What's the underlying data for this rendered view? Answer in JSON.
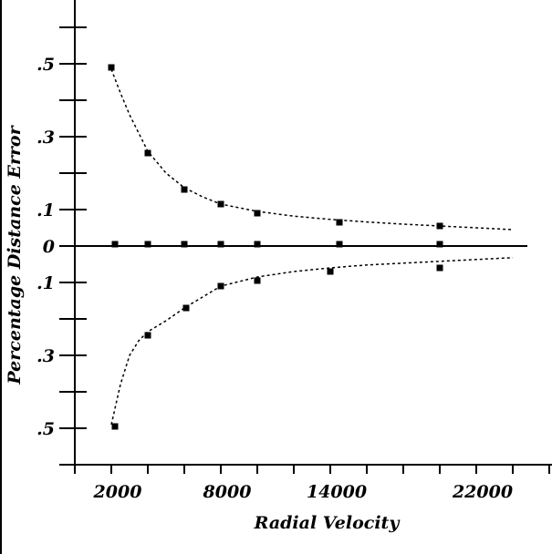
{
  "chart_data": {
    "type": "scatter",
    "xlabel": "Radial Velocity",
    "ylabel": "Percentage Distance Error",
    "xlim": [
      0,
      26000
    ],
    "ylim": [
      -0.6,
      0.6
    ],
    "x_tick_values": [
      2000,
      8000,
      14000,
      22000
    ],
    "x_tick_labels": [
      "2000",
      "8000",
      "14000",
      "22000"
    ],
    "x_minor_ticks": [
      0,
      2000,
      4000,
      6000,
      8000,
      10000,
      12000,
      14000,
      16000,
      18000,
      20000,
      22000,
      24000,
      26000
    ],
    "y_tick_values": [
      0.5,
      0.3,
      0.1,
      0,
      -0.1,
      -0.3,
      -0.5
    ],
    "y_tick_labels": [
      ".5",
      ".3",
      ".1",
      "0",
      ".1",
      ".3",
      ".5"
    ],
    "y_minor_ticks": [
      0.6,
      0.5,
      0.4,
      0.3,
      0.2,
      0.1,
      0,
      -0.1,
      -0.2,
      -0.3,
      -0.4,
      -0.5,
      -0.6
    ],
    "series": [
      {
        "kind": "points",
        "x": [
          2000,
          4000,
          6000,
          8000,
          10000,
          14500,
          20000
        ],
        "y": [
          0.49,
          0.255,
          0.155,
          0.115,
          0.09,
          0.065,
          0.055
        ]
      },
      {
        "kind": "points",
        "x": [
          2200,
          4000,
          6000,
          8000,
          10000,
          14500,
          20000
        ],
        "y": [
          0.005,
          0.005,
          0.005,
          0.005,
          0.005,
          0.005,
          0.005
        ]
      },
      {
        "kind": "points",
        "x": [
          2200,
          4000,
          6100,
          8000,
          10000,
          14000,
          20000
        ],
        "y": [
          -0.495,
          -0.245,
          -0.17,
          -0.11,
          -0.095,
          -0.07,
          -0.06
        ]
      },
      {
        "kind": "curve",
        "style": "dashed",
        "x": [
          2000,
          2500,
          3000,
          3500,
          4000,
          5000,
          6000,
          7000,
          8000,
          10000,
          12000,
          14000,
          16000,
          18000,
          20000,
          22000,
          24000
        ],
        "y": [
          0.485,
          0.42,
          0.36,
          0.31,
          0.26,
          0.2,
          0.16,
          0.135,
          0.115,
          0.095,
          0.082,
          0.073,
          0.066,
          0.06,
          0.055,
          0.05,
          0.045
        ]
      },
      {
        "kind": "curve",
        "style": "dashed",
        "x": [
          2000,
          2500,
          3000,
          3500,
          4000,
          5000,
          6000,
          7000,
          8000,
          10000,
          12000,
          14000,
          16000,
          18000,
          20000,
          22000,
          24000
        ],
        "y": [
          -0.49,
          -0.38,
          -0.3,
          -0.26,
          -0.235,
          -0.205,
          -0.17,
          -0.14,
          -0.11,
          -0.085,
          -0.07,
          -0.06,
          -0.052,
          -0.047,
          -0.042,
          -0.037,
          -0.032
        ]
      }
    ]
  }
}
